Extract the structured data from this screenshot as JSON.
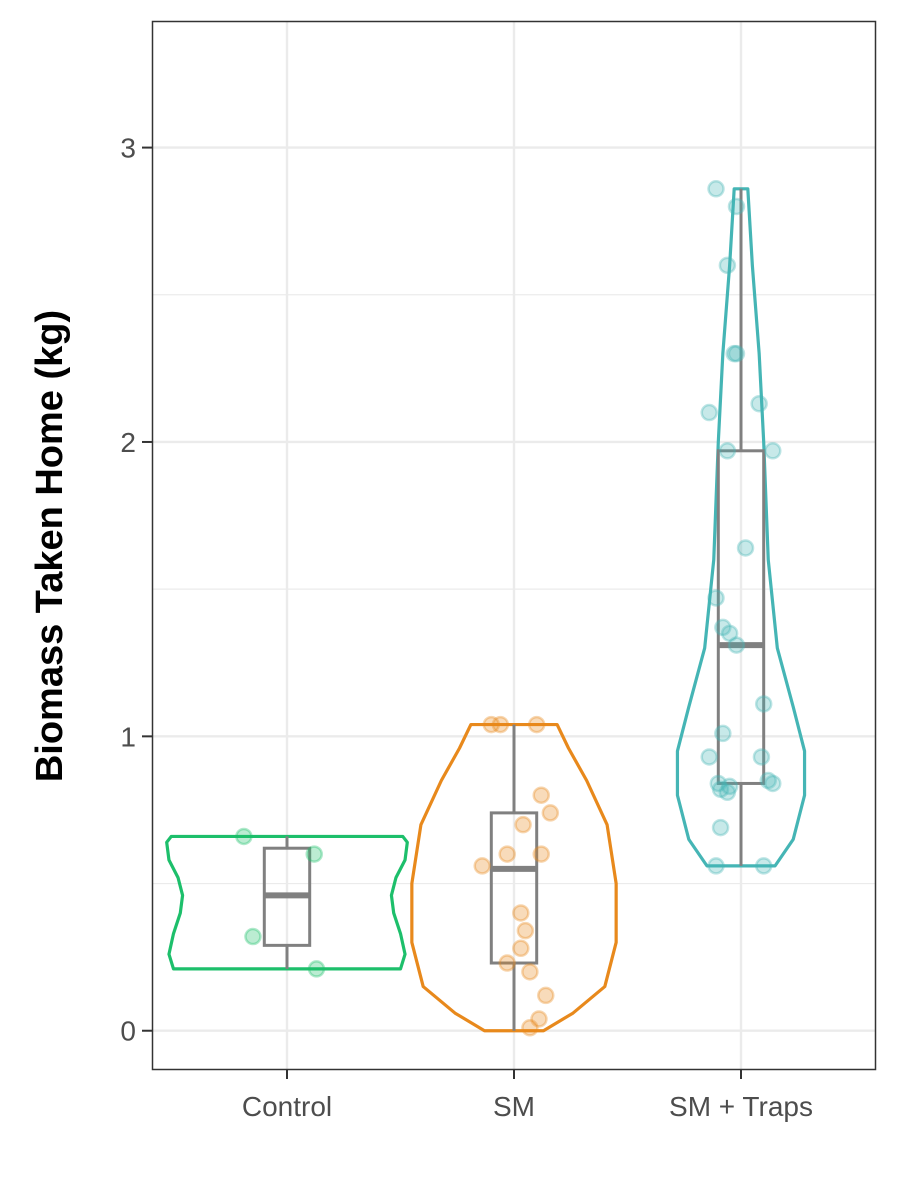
{
  "chart_data": {
    "type": "violin",
    "title": "",
    "xlabel": "",
    "ylabel": "Biomass Taken Home (kg)",
    "ylim": [
      -0.13,
      3.43
    ],
    "yticks": [
      0,
      1,
      2,
      3
    ],
    "ytick_labels": [
      "0",
      "1",
      "2",
      "3"
    ],
    "grid": true,
    "legend": "none",
    "categories": [
      "Control",
      "SM",
      "SM + Traps"
    ],
    "colors": {
      "Control": "#1dbf6b",
      "SM": "#e8891c",
      "SM + Traps": "#45b5b5",
      "box": "#808080"
    },
    "groups": [
      {
        "name": "Control",
        "box": {
          "min": 0.21,
          "q1": 0.29,
          "median": 0.46,
          "q3": 0.62,
          "max": 0.66
        },
        "violin_profile": [
          [
            0.21,
            0.5
          ],
          [
            0.26,
            0.52
          ],
          [
            0.33,
            0.5
          ],
          [
            0.4,
            0.47
          ],
          [
            0.46,
            0.46
          ],
          [
            0.52,
            0.48
          ],
          [
            0.58,
            0.52
          ],
          [
            0.64,
            0.53
          ],
          [
            0.66,
            0.51
          ]
        ],
        "points": [
          {
            "offset": -0.19,
            "y": 0.66
          },
          {
            "offset": 0.12,
            "y": 0.6
          },
          {
            "offset": -0.15,
            "y": 0.32
          },
          {
            "offset": 0.13,
            "y": 0.21
          }
        ]
      },
      {
        "name": "SM",
        "box": {
          "min": 0.0,
          "q1": 0.23,
          "median": 0.55,
          "q3": 0.74,
          "max": 1.04
        },
        "violin_profile": [
          [
            0.0,
            0.13
          ],
          [
            0.06,
            0.26
          ],
          [
            0.15,
            0.4
          ],
          [
            0.3,
            0.45
          ],
          [
            0.5,
            0.45
          ],
          [
            0.7,
            0.41
          ],
          [
            0.85,
            0.32
          ],
          [
            0.96,
            0.24
          ],
          [
            1.04,
            0.19
          ]
        ],
        "points": [
          {
            "offset": -0.1,
            "y": 1.04
          },
          {
            "offset": -0.06,
            "y": 1.04
          },
          {
            "offset": 0.1,
            "y": 1.04
          },
          {
            "offset": 0.12,
            "y": 0.8
          },
          {
            "offset": 0.16,
            "y": 0.74
          },
          {
            "offset": 0.04,
            "y": 0.7
          },
          {
            "offset": -0.03,
            "y": 0.6
          },
          {
            "offset": 0.12,
            "y": 0.6
          },
          {
            "offset": -0.14,
            "y": 0.56
          },
          {
            "offset": 0.03,
            "y": 0.4
          },
          {
            "offset": 0.05,
            "y": 0.34
          },
          {
            "offset": 0.03,
            "y": 0.28
          },
          {
            "offset": -0.03,
            "y": 0.23
          },
          {
            "offset": 0.07,
            "y": 0.2
          },
          {
            "offset": 0.14,
            "y": 0.12
          },
          {
            "offset": 0.11,
            "y": 0.04
          },
          {
            "offset": 0.07,
            "y": 0.01
          }
        ]
      },
      {
        "name": "SM + Traps",
        "box": {
          "min": 0.56,
          "q1": 0.84,
          "median": 1.31,
          "q3": 1.97,
          "max": 2.86
        },
        "violin_profile": [
          [
            0.56,
            0.15
          ],
          [
            0.65,
            0.23
          ],
          [
            0.8,
            0.28
          ],
          [
            0.95,
            0.28
          ],
          [
            1.1,
            0.23
          ],
          [
            1.3,
            0.16
          ],
          [
            1.6,
            0.12
          ],
          [
            2.0,
            0.1
          ],
          [
            2.3,
            0.08
          ],
          [
            2.6,
            0.05
          ],
          [
            2.86,
            0.03
          ]
        ],
        "points": [
          {
            "offset": -0.11,
            "y": 2.86
          },
          {
            "offset": -0.02,
            "y": 2.8
          },
          {
            "offset": -0.06,
            "y": 2.6
          },
          {
            "offset": -0.03,
            "y": 2.3
          },
          {
            "offset": -0.02,
            "y": 2.3
          },
          {
            "offset": 0.08,
            "y": 2.13
          },
          {
            "offset": -0.14,
            "y": 2.1
          },
          {
            "offset": -0.06,
            "y": 1.97
          },
          {
            "offset": 0.14,
            "y": 1.97
          },
          {
            "offset": 0.02,
            "y": 1.64
          },
          {
            "offset": -0.11,
            "y": 1.47
          },
          {
            "offset": -0.08,
            "y": 1.37
          },
          {
            "offset": -0.05,
            "y": 1.35
          },
          {
            "offset": -0.02,
            "y": 1.31
          },
          {
            "offset": 0.1,
            "y": 1.11
          },
          {
            "offset": -0.08,
            "y": 1.01
          },
          {
            "offset": -0.14,
            "y": 0.93
          },
          {
            "offset": 0.09,
            "y": 0.93
          },
          {
            "offset": -0.1,
            "y": 0.84
          },
          {
            "offset": -0.05,
            "y": 0.83
          },
          {
            "offset": -0.09,
            "y": 0.82
          },
          {
            "offset": -0.06,
            "y": 0.81
          },
          {
            "offset": 0.12,
            "y": 0.85
          },
          {
            "offset": 0.14,
            "y": 0.84
          },
          {
            "offset": -0.09,
            "y": 0.69
          },
          {
            "offset": -0.11,
            "y": 0.56
          },
          {
            "offset": 0.1,
            "y": 0.56
          }
        ]
      }
    ]
  }
}
